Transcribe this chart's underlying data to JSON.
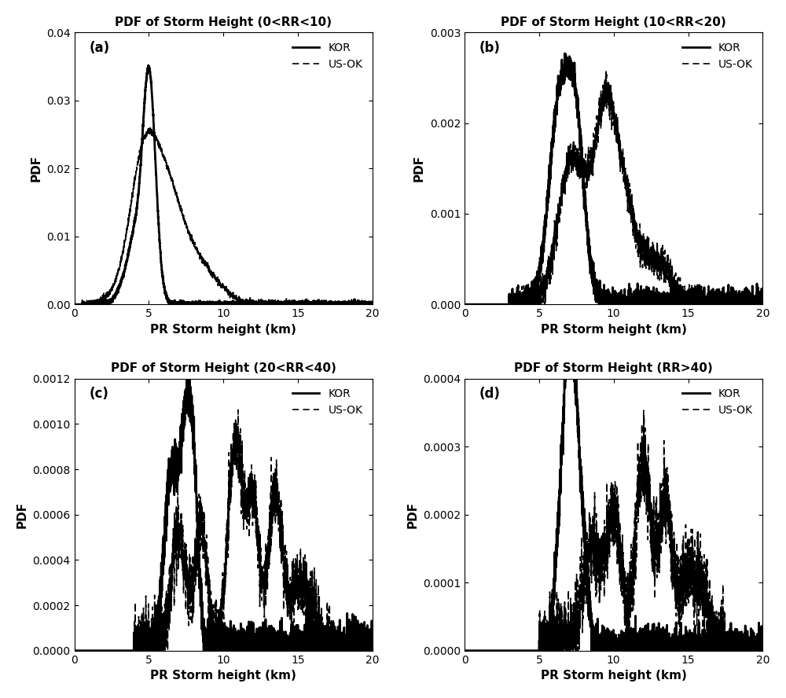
{
  "titles": [
    "PDF of Storm Height (0<RR<10)",
    "PDF of Storm Height (10<RR<20)",
    "PDF of Storm Height (20<RR<40)",
    "PDF of Storm Height (RR>40)"
  ],
  "panel_labels": [
    "(a)",
    "(b)",
    "(c)",
    "(d)"
  ],
  "xlabel": "PR Storm height (km)",
  "ylabel": "PDF",
  "xlim": [
    0,
    20
  ],
  "ylims": [
    [
      0,
      0.04
    ],
    [
      0,
      0.003
    ],
    [
      0,
      0.0012
    ],
    [
      0,
      0.0004
    ]
  ],
  "xticks": [
    0,
    5,
    10,
    15,
    20
  ],
  "yticks_a": [
    0.0,
    0.01,
    0.02,
    0.03,
    0.04
  ],
  "yticks_b": [
    0.0,
    0.001,
    0.002,
    0.003
  ],
  "yticks_c": [
    0.0,
    0.0002,
    0.0004,
    0.0006,
    0.0008,
    0.001,
    0.0012
  ],
  "yticks_d": [
    0.0,
    0.0001,
    0.0002,
    0.0003,
    0.0004
  ],
  "legend_labels": [
    "KOR",
    "US-OK"
  ],
  "line_color": "#000000",
  "kor_lw": 2.0,
  "usok_lw": 1.2
}
